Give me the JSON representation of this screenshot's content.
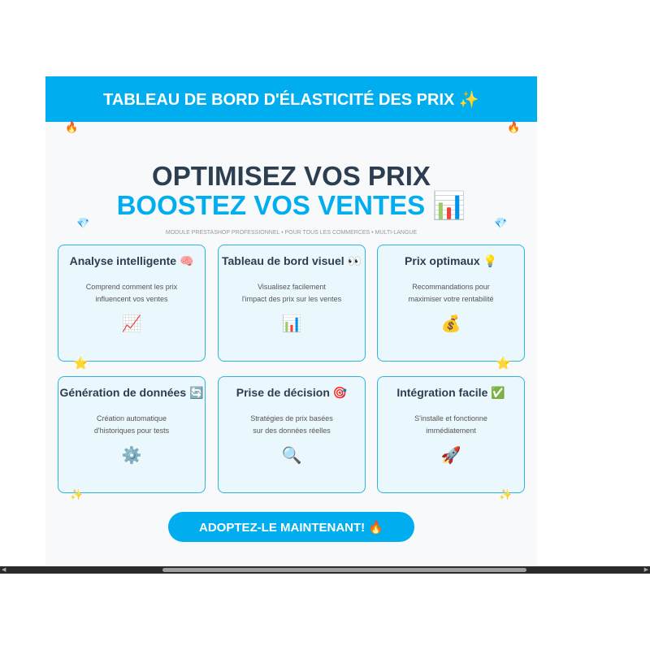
{
  "header": {
    "title": "TABLEAU DE BORD D'ÉLASTICITÉ DES PRIX ✨"
  },
  "hero": {
    "line1": "OPTIMISEZ VOS PRIX",
    "line2": "BOOSTEZ VOS VENTES 📊",
    "subtitle": "MODULE PRESTASHOP PROFESSIONNEL • POUR TOUS LES COMMERCES • MULTI-LANGUE"
  },
  "decorations": {
    "fire": "🔥",
    "diamond": "💎",
    "star": "⭐",
    "sparkle": "✨"
  },
  "cards": [
    {
      "title": "Analyse intelligente 🧠",
      "desc1": "Comprend comment les prix",
      "desc2": "influencent vos ventes",
      "icon": "📈"
    },
    {
      "title": "Tableau de bord visuel 👀",
      "desc1": "Visualisez facilement",
      "desc2": "l'impact des prix sur les ventes",
      "icon": "📊"
    },
    {
      "title": "Prix optimaux 💡",
      "desc1": "Recommandations pour",
      "desc2": "maximiser votre rentabilité",
      "icon": "💰"
    },
    {
      "title": "Génération de données 🔄",
      "desc1": "Création automatique",
      "desc2": "d'historiques pour tests",
      "icon": "⚙️"
    },
    {
      "title": "Prise de décision 🎯",
      "desc1": "Stratégies de prix basées",
      "desc2": "sur des données réelles",
      "icon": "🔍"
    },
    {
      "title": "Intégration facile ✅",
      "desc1": "S'installe et fonctionne",
      "desc2": "immédiatement",
      "icon": "🚀"
    }
  ],
  "cta": {
    "label": "ADOPTEZ-LE MAINTENANT! 🔥"
  },
  "colors": {
    "accent": "#00aeef",
    "heading": "#2c3e50",
    "card_bg": "#eaf7fc",
    "card_border": "#2cb5e0"
  }
}
